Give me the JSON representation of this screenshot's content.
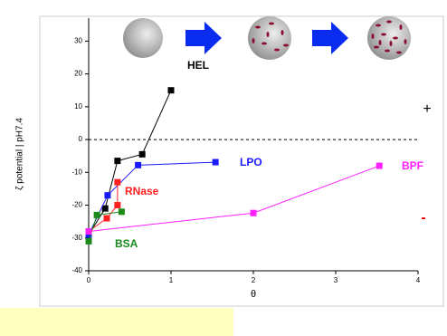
{
  "chart_data": {
    "type": "line",
    "y_label": "ζ potential | pH7.4",
    "x_label": "θ",
    "annotations": [
      "+",
      "-"
    ],
    "xlim": [
      0,
      4
    ],
    "xticks": [
      0,
      1,
      2,
      3,
      4
    ],
    "ylim": [
      -40,
      37
    ],
    "yticks": [
      -40,
      -30,
      -20,
      -10,
      0,
      10,
      20,
      30
    ],
    "hline": 0,
    "series": [
      {
        "name": "HEL",
        "color": "#000000",
        "x": [
          0,
          0.2,
          0.35,
          0.65,
          1.0
        ],
        "values": [
          -29,
          -21,
          -6.5,
          -4.5,
          15
        ]
      },
      {
        "name": "LPO",
        "color": "#1a1aff",
        "x": [
          0,
          0.23,
          0.6,
          1.54
        ],
        "values": [
          -29,
          -17,
          -7.8,
          -6.9
        ]
      },
      {
        "name": "RNase",
        "color": "#ff2020",
        "x": [
          0,
          0.22,
          0.35,
          0.35
        ],
        "values": [
          -28,
          -24,
          -20,
          -13
        ]
      },
      {
        "name": "BSA",
        "color": "#1a8a1a",
        "x": [
          0,
          0.1,
          0.4
        ],
        "values": [
          -31,
          -23,
          -22
        ]
      },
      {
        "name": "BPF",
        "color": "#ff20ff",
        "x": [
          0,
          2.0,
          3.53
        ],
        "values": [
          -28,
          -22.4,
          -8
        ]
      }
    ]
  }
}
